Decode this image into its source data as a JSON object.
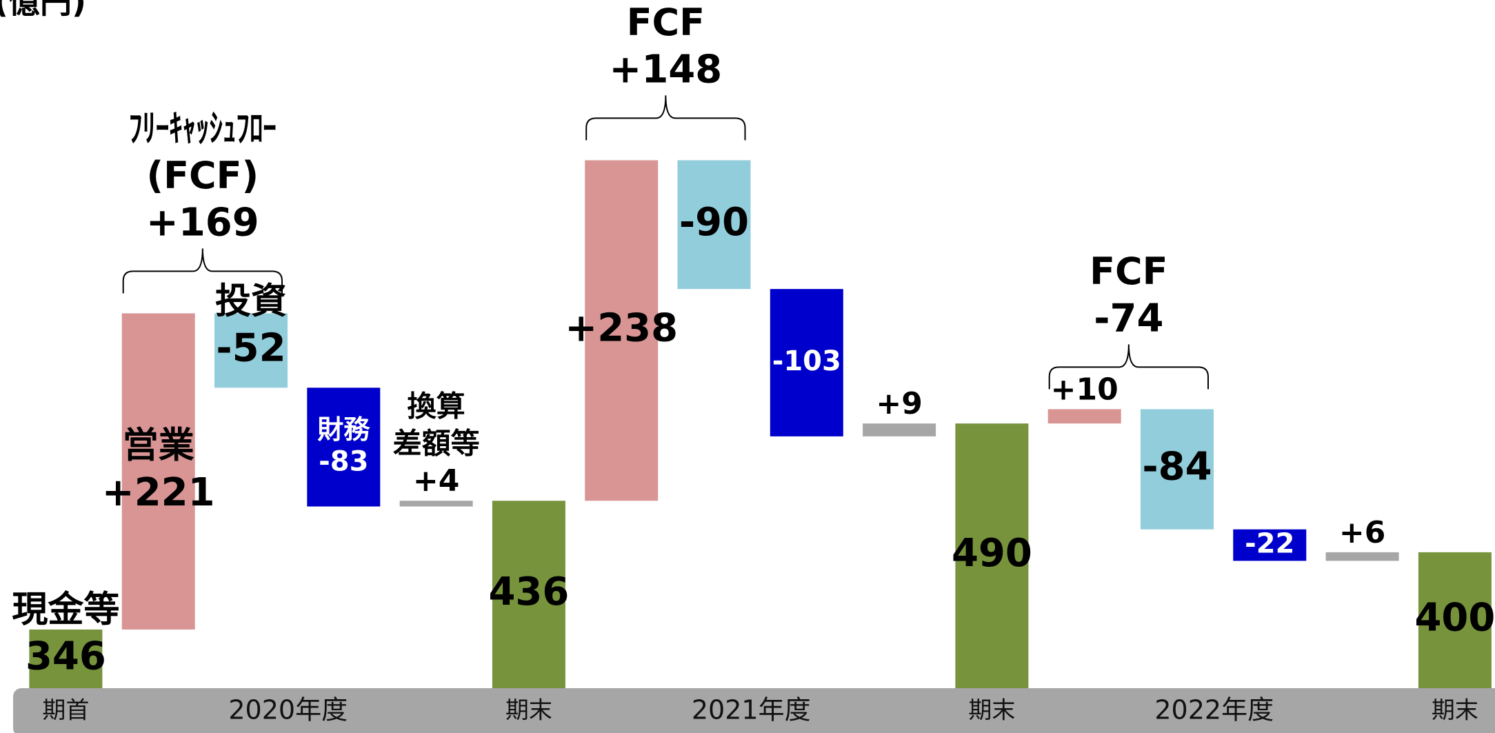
{
  "chart_data": {
    "type": "waterfall",
    "title": "(億円)",
    "values": [
      346,
      221,
      -52,
      -83,
      4,
      436,
      238,
      -90,
      -103,
      9,
      490,
      10,
      -84,
      -22,
      6,
      400
    ],
    "value_labels": [
      "346",
      "+221",
      "-52",
      "-83",
      "+4",
      "436",
      "+238",
      "-90",
      "-103",
      "+9",
      "490",
      "+10",
      "-84",
      "-22",
      "+6",
      "400"
    ],
    "measure": [
      "absolute",
      "relative",
      "relative",
      "relative",
      "relative",
      "absolute",
      "relative",
      "relative",
      "relative",
      "relative",
      "absolute",
      "relative",
      "relative",
      "relative",
      "relative",
      "absolute"
    ],
    "colors": [
      "#77933c",
      "#d99594",
      "#92cddc",
      "#0000cc",
      "#a6a6a6",
      "#77933c",
      "#d99594",
      "#92cddc",
      "#0000cc",
      "#a6a6a6",
      "#77933c",
      "#d99594",
      "#92cddc",
      "#0000cc",
      "#a6a6a6",
      "#77933c"
    ],
    "bar_labels": [
      [
        "現金等"
      ],
      [
        "営業"
      ],
      [
        "投資"
      ],
      [
        "財務"
      ],
      [
        "換算",
        "差額等"
      ],
      null,
      null,
      null,
      null,
      null,
      null,
      null,
      null,
      null,
      null,
      null
    ],
    "categories": [
      "期首",
      null,
      null,
      null,
      null,
      "期末",
      null,
      null,
      null,
      null,
      "期末",
      null,
      null,
      null,
      null,
      "期末"
    ],
    "periods": [
      "2020年度",
      "2021年度",
      "2022年度"
    ],
    "annotations": [
      {
        "lines": [
          "ﾌﾘｰｷｬｯｼｭﾌﾛｰ",
          "(FCF)"
        ],
        "value": 169,
        "value_label": "+169"
      },
      {
        "lines": [
          "FCF"
        ],
        "value": 148,
        "value_label": "+148"
      },
      {
        "lines": [
          "FCF"
        ],
        "value": -74,
        "value_label": "-74"
      }
    ],
    "ylim": [
      305,
      786
    ]
  }
}
